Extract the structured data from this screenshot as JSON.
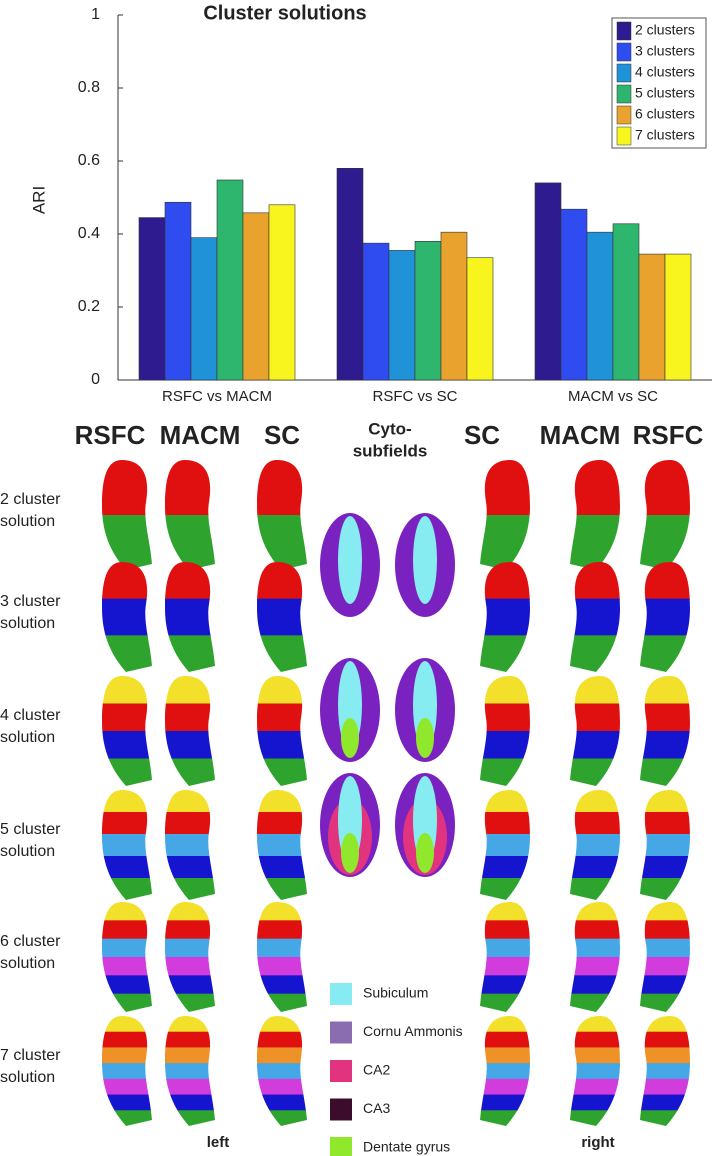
{
  "chart_data": {
    "type": "bar",
    "title": "Cluster solutions",
    "y_label": "ARI",
    "categories": [
      "RSFC vs MACM",
      "RSFC vs SC",
      "MACM vs SC"
    ],
    "series": [
      {
        "name": "2 clusters",
        "color": "#2e1b8f",
        "values": [
          0.445,
          0.58,
          0.54
        ]
      },
      {
        "name": "3 clusters",
        "color": "#2f4cf0",
        "values": [
          0.487,
          0.375,
          0.468
        ]
      },
      {
        "name": "4 clusters",
        "color": "#1f92d8",
        "values": [
          0.39,
          0.355,
          0.405
        ]
      },
      {
        "name": "5 clusters",
        "color": "#2eb56e",
        "values": [
          0.548,
          0.38,
          0.428
        ]
      },
      {
        "name": "6 clusters",
        "color": "#eaa22e",
        "values": [
          0.458,
          0.405,
          0.345
        ]
      },
      {
        "name": "7 clusters",
        "color": "#f7f51d",
        "values": [
          0.48,
          0.335,
          0.345
        ]
      }
    ],
    "ylim": [
      0,
      1
    ],
    "yticks": [
      0,
      0.2,
      0.4,
      0.6,
      0.8,
      1
    ],
    "grid": false,
    "legend": "top-right"
  },
  "panels": {
    "headers": [
      [
        "RSFC"
      ],
      [
        "MACM"
      ],
      [
        "SC"
      ],
      [
        "Cyto-",
        "subfields"
      ],
      [
        "SC"
      ],
      [
        "MACM"
      ],
      [
        "RSFC"
      ]
    ],
    "rows": [
      [
        "2 cluster",
        "solution"
      ],
      [
        "3 cluster",
        "solution"
      ],
      [
        "4 cluster",
        "solution"
      ],
      [
        "5 cluster",
        "solution"
      ],
      [
        "6 cluster",
        "solution"
      ],
      [
        "7 cluster",
        "solution"
      ]
    ],
    "cyto_legend": [
      {
        "label": "Subiculum",
        "color": "#86ecf2"
      },
      {
        "label": "Cornu Ammonis",
        "color": "#8a6db0"
      },
      {
        "label": "CA2",
        "color": "#e2337f"
      },
      {
        "label": "CA3",
        "color": "#3b0c2b"
      },
      {
        "label": "Dentate gyrus",
        "color": "#90e82c"
      }
    ],
    "left": "left",
    "right": "right"
  }
}
